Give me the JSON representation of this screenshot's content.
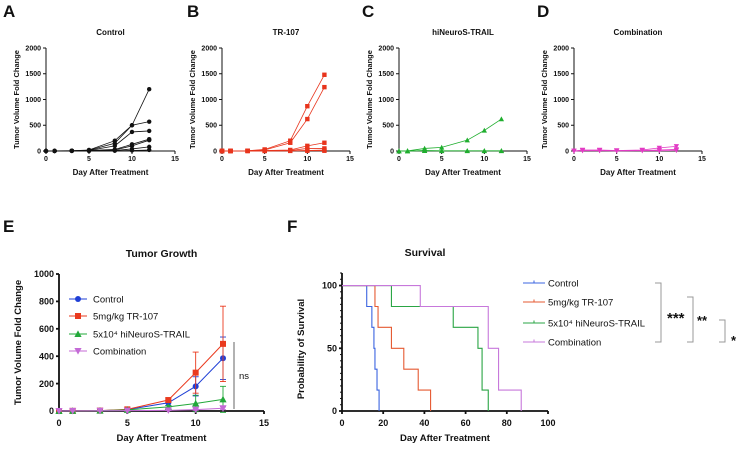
{
  "colors": {
    "control": "#111111",
    "tr107": "#e8341c",
    "hineuros": "#1fae2e",
    "combination": "#e23bc4",
    "e_control": "#1f3fd6",
    "e_tr107": "#ea3a1e",
    "e_hineuros": "#22a83a",
    "e_combination": "#c46ad6",
    "f_control": "#3b64e0",
    "f_tr107": "#e55a32",
    "f_hineuros": "#2aa544",
    "f_combination": "#c778db",
    "bracket": "#999999"
  },
  "chart_data": [
    {
      "panel": "A",
      "type": "line",
      "title": "Control",
      "xlabel": "Day After Treatment",
      "ylabel": "Tumor Volume Fold Change",
      "xlim": [
        0,
        15
      ],
      "ylim": [
        0,
        2000
      ],
      "xticks": [
        "0",
        "5",
        "10",
        "15"
      ],
      "yticks": [
        "0",
        "500",
        "1000",
        "1500",
        "2000"
      ],
      "marker": "circle",
      "color_key": "control",
      "x": [
        0,
        1,
        3,
        5,
        8,
        10,
        12
      ],
      "series": [
        {
          "values": [
            0,
            1,
            5,
            20,
            200,
            500,
            1200
          ]
        },
        {
          "values": [
            0,
            1,
            5,
            15,
            150,
            500,
            570
          ]
        },
        {
          "values": [
            0,
            1,
            5,
            10,
            100,
            370,
            390
          ]
        },
        {
          "values": [
            0,
            1,
            3,
            10,
            30,
            130,
            230
          ]
        },
        {
          "values": [
            0,
            1,
            3,
            5,
            20,
            100,
            210
          ]
        },
        {
          "values": [
            0,
            1,
            2,
            3,
            10,
            40,
            80
          ]
        },
        {
          "values": [
            0,
            0,
            1,
            2,
            5,
            10,
            20
          ]
        }
      ]
    },
    {
      "panel": "B",
      "type": "line",
      "title": "TR-107",
      "xlabel": "Day After Treatment",
      "ylabel": "Tumor Volume Fold Change",
      "xlim": [
        0,
        15
      ],
      "ylim": [
        0,
        2000
      ],
      "xticks": [
        "0",
        "5",
        "10",
        "15"
      ],
      "yticks": [
        "0",
        "500",
        "1000",
        "1500",
        "2000"
      ],
      "marker": "square",
      "color_key": "tr107",
      "x": [
        0,
        1,
        3,
        5,
        8,
        10,
        12
      ],
      "series": [
        {
          "values": [
            0,
            1,
            5,
            30,
            200,
            870,
            1480
          ]
        },
        {
          "values": [
            0,
            1,
            5,
            20,
            160,
            620,
            1240
          ]
        },
        {
          "values": [
            0,
            1,
            3,
            10,
            20,
            100,
            160
          ]
        },
        {
          "values": [
            0,
            1,
            2,
            5,
            10,
            50,
            50
          ]
        },
        {
          "values": [
            0,
            0,
            1,
            2,
            5,
            10,
            20
          ]
        },
        {
          "values": [
            0,
            0,
            1,
            1,
            2,
            5,
            5
          ]
        }
      ]
    },
    {
      "panel": "C",
      "type": "line",
      "title": "hiNeuroS-TRAIL",
      "xlabel": "Day After Treatment",
      "ylabel": "Tumor Volume Fold Change",
      "xlim": [
        0,
        15
      ],
      "ylim": [
        0,
        2000
      ],
      "xticks": [
        "0",
        "5",
        "10",
        "15"
      ],
      "yticks": [
        "0",
        "500",
        "1000",
        "1500",
        "2000"
      ],
      "marker": "triangle-up",
      "color_key": "hineuros",
      "x": [
        0,
        1,
        3,
        5,
        8,
        10,
        12
      ],
      "series": [
        {
          "values": [
            0,
            1,
            50,
            70,
            210,
            400,
            620
          ]
        },
        {
          "values": [
            0,
            0,
            10,
            5,
            5,
            5,
            5
          ]
        },
        {
          "values": [
            0,
            0,
            5,
            2,
            2,
            2,
            2
          ]
        }
      ]
    },
    {
      "panel": "D",
      "type": "line",
      "title": "Combination",
      "xlabel": "Day After Treatment",
      "ylabel": "Tumor Volume Fold Change",
      "xlim": [
        0,
        15
      ],
      "ylim": [
        0,
        2000
      ],
      "xticks": [
        "0",
        "5",
        "10",
        "15"
      ],
      "yticks": [
        "0",
        "500",
        "1000",
        "1500",
        "2000"
      ],
      "marker": "triangle-down",
      "color_key": "combination",
      "x": [
        0,
        1,
        3,
        5,
        8,
        10,
        12
      ],
      "series": [
        {
          "values": [
            0,
            20,
            20,
            10,
            20,
            60,
            90
          ]
        },
        {
          "values": [
            0,
            10,
            10,
            5,
            10,
            20,
            30
          ]
        },
        {
          "values": [
            0,
            5,
            5,
            2,
            5,
            5,
            10
          ]
        }
      ]
    },
    {
      "panel": "E",
      "type": "line",
      "title": "Tumor Growth",
      "xlabel": "Day After Treatment",
      "ylabel": "Tumor Volume Fold Change",
      "xlim": [
        0,
        15
      ],
      "ylim": [
        0,
        1000
      ],
      "xticks": [
        "0",
        "5",
        "10",
        "15"
      ],
      "yticks": [
        "0",
        "200",
        "400",
        "600",
        "800",
        "1000"
      ],
      "x": [
        0,
        1,
        3,
        5,
        8,
        10,
        12
      ],
      "legend": "top-left",
      "annotation": "ns",
      "series": [
        {
          "name": "Control",
          "marker": "circle",
          "color_key": "e_control",
          "values": [
            0,
            1,
            2,
            10,
            60,
            180,
            385
          ],
          "error": [
            0,
            0,
            1,
            3,
            20,
            70,
            155
          ]
        },
        {
          "name": "5mg/kg TR-107",
          "marker": "square",
          "color_key": "e_tr107",
          "values": [
            0,
            1,
            3,
            12,
            80,
            280,
            490
          ],
          "error": [
            0,
            0,
            1,
            5,
            15,
            150,
            275
          ]
        },
        {
          "name": "5x10⁴ hiNeuroS-TRAIL",
          "marker": "triangle-up",
          "color_key": "e_hineuros",
          "values": [
            0,
            1,
            3,
            8,
            30,
            55,
            85
          ],
          "error": [
            0,
            0,
            2,
            5,
            10,
            60,
            95
          ]
        },
        {
          "name": "Combination",
          "marker": "triangle-down",
          "color_key": "e_combination",
          "values": [
            0,
            1,
            2,
            3,
            5,
            10,
            20
          ],
          "error": [
            0,
            0,
            1,
            1,
            2,
            5,
            10
          ]
        }
      ]
    },
    {
      "panel": "F",
      "type": "line",
      "subtype": "kaplan-meier",
      "title": "Survival",
      "xlabel": "Day After Treatment",
      "ylabel": "Probability of Survival",
      "xlim": [
        0,
        100
      ],
      "ylim": [
        0,
        110
      ],
      "xticks": [
        "0",
        "20",
        "40",
        "60",
        "80",
        "100"
      ],
      "yticks": [
        "0",
        "50",
        "100"
      ],
      "legend": "right",
      "series": [
        {
          "name": "Control",
          "color_key": "f_control",
          "steps": [
            [
              0,
              100
            ],
            [
              12,
              83.3
            ],
            [
              14.5,
              66.7
            ],
            [
              15.5,
              50
            ],
            [
              16,
              33.3
            ],
            [
              17,
              16.7
            ],
            [
              18,
              0
            ]
          ]
        },
        {
          "name": "5mg/kg TR-107",
          "color_key": "f_tr107",
          "steps": [
            [
              0,
              100
            ],
            [
              16,
              83.3
            ],
            [
              17.5,
              66.7
            ],
            [
              24,
              50
            ],
            [
              30,
              33.3
            ],
            [
              37,
              16.7
            ],
            [
              43,
              0
            ]
          ]
        },
        {
          "name": "5x10⁴ hiNeuroS-TRAIL",
          "color_key": "f_hineuros",
          "steps": [
            [
              0,
              100
            ],
            [
              24,
              83.3
            ],
            [
              54,
              66.7
            ],
            [
              66,
              50
            ],
            [
              68,
              16.7
            ],
            [
              71,
              0
            ]
          ]
        },
        {
          "name": "Combination",
          "color_key": "f_combination",
          "steps": [
            [
              0,
              100
            ],
            [
              38,
              83.3
            ],
            [
              71,
              50
            ],
            [
              76,
              16.7
            ],
            [
              87,
              0
            ]
          ]
        }
      ],
      "significance": [
        {
          "label": "***"
        },
        {
          "label": "**"
        },
        {
          "label": "*"
        }
      ]
    }
  ]
}
